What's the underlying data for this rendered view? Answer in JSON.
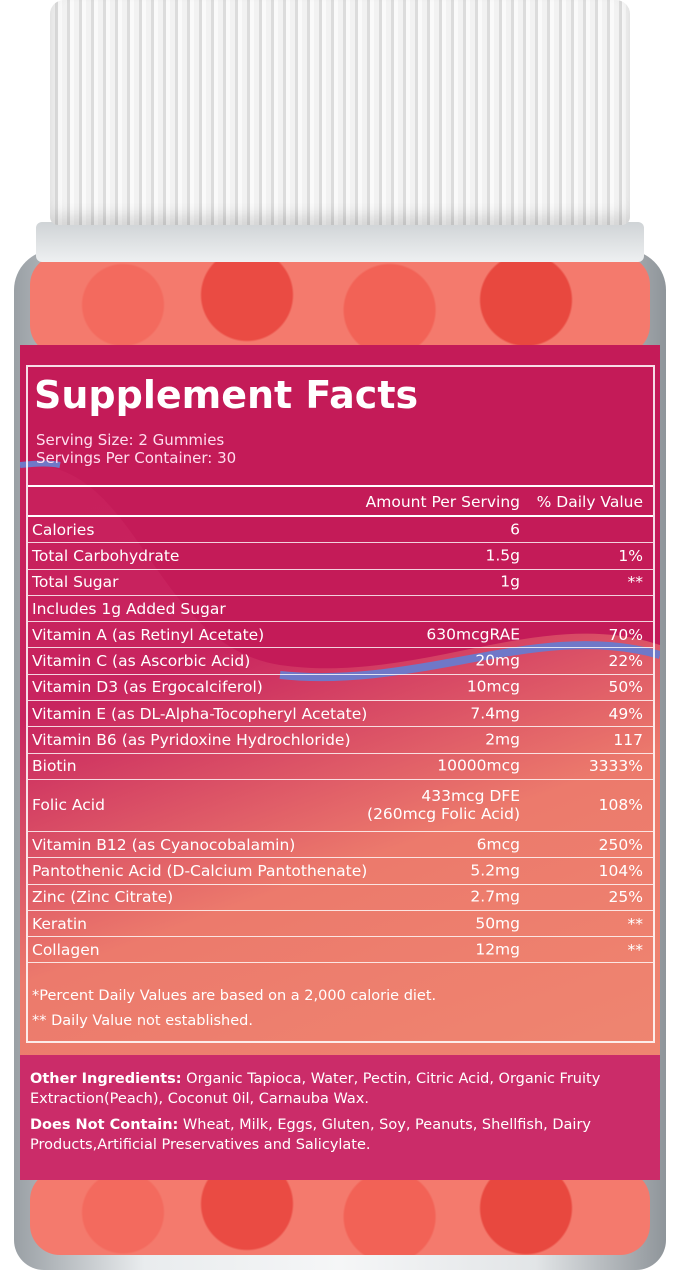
{
  "label": {
    "title": "Supplement Facts",
    "serving_size": "Serving Size: 2 Gummies",
    "servings_per_container": "Servings Per Container: 30",
    "col_amount": "Amount Per Serving",
    "col_dv": "% Daily Value",
    "rows": [
      {
        "name": "Calories",
        "amount": "6",
        "dv": ""
      },
      {
        "name": "Total Carbohydrate",
        "amount": "1.5g",
        "dv": "1%"
      },
      {
        "name": "Total Sugar",
        "amount": "1g",
        "dv": "**"
      },
      {
        "name": "Includes 1g Added Sugar",
        "amount": "",
        "dv": ""
      },
      {
        "name": "Vitamin A (as Retinyl Acetate)",
        "amount": "630mcgRAE",
        "dv": "70%"
      },
      {
        "name": "Vitamin C (as Ascorbic Acid)",
        "amount": "20mg",
        "dv": "22%"
      },
      {
        "name": "Vitamin D3 (as Ergocalciferol)",
        "amount": "10mcg",
        "dv": "50%"
      },
      {
        "name": "Vitamin E (as DL-Alpha-Tocopheryl Acetate)",
        "amount": "7.4mg",
        "dv": "49%"
      },
      {
        "name": "Vitamin B6 (as Pyridoxine Hydrochloride)",
        "amount": "2mg",
        "dv": "117"
      },
      {
        "name": "Biotin",
        "amount": "10000mcg",
        "dv": "3333%"
      },
      {
        "name": "Folic Acid",
        "amount": "433mcg DFE",
        "amount2": "(260mcg Folic Acid)",
        "dv": "108%"
      },
      {
        "name": "Vitamin B12 (as Cyanocobalamin)",
        "amount": "6mcg",
        "dv": "250%"
      },
      {
        "name": "Pantothenic Acid (D-Calcium Pantothenate)",
        "amount": "5.2mg",
        "dv": "104%"
      },
      {
        "name": "Zinc (Zinc Citrate)",
        "amount": "2.7mg",
        "dv": "25%"
      },
      {
        "name": "Keratin",
        "amount": "50mg",
        "dv": "**"
      },
      {
        "name": "Collagen",
        "amount": "12mg",
        "dv": "**"
      }
    ],
    "footnote1": "*Percent Daily Values are based on a 2,000 calorie diet.",
    "footnote2": "** Daily Value not established.",
    "other_label": "Other Ingredients:",
    "other_text": " Organic Tapioca, Water, Pectin, Citric Acid, Organic Fruity Extraction(Peach), Coconut 0il, Carnauba Wax.",
    "dnc_label": "Does Not Contain:",
    "dnc_text": " Wheat, Milk, Eggs, Gluten, Soy, Peanuts, Shellfish, Dairy Products,Artificial Preservatives and Salicylate."
  },
  "colors": {
    "label_magenta": "#c81d5a",
    "label_peach": "#f08a72",
    "gummy": "#ea4b43",
    "wave": "#6f78c8"
  }
}
